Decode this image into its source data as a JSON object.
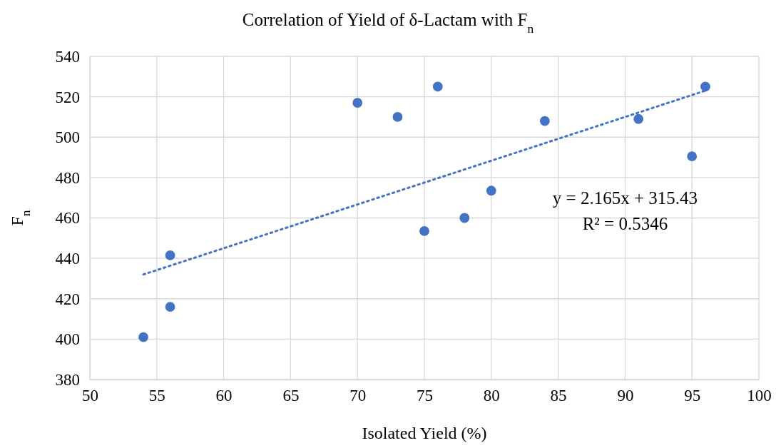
{
  "chart_data": {
    "type": "scatter",
    "title": "Correlation of Yield of δ-Lactam with F$_{n}$",
    "xlabel": "Isolated Yield (%)",
    "ylabel": "F$_{n}$",
    "xlim": [
      50,
      100
    ],
    "xticks": [
      50,
      55,
      60,
      65,
      70,
      75,
      80,
      85,
      90,
      95,
      100
    ],
    "ylim": [
      380,
      540
    ],
    "yticks": [
      380,
      400,
      420,
      440,
      460,
      480,
      500,
      520,
      540
    ],
    "grid": true,
    "series": [
      {
        "color": "#4472c4",
        "marker": "circle",
        "x": [
          54,
          56,
          56,
          70,
          73,
          76,
          75,
          78,
          80,
          84,
          91,
          95,
          96
        ],
        "values": [
          401,
          416,
          441.5,
          517,
          510,
          525,
          453.5,
          460,
          473.5,
          508,
          509,
          490.5,
          525
        ]
      },
      {
        "type": "line",
        "color": "#4472c4",
        "line_style": "dotted",
        "marker": "none",
        "x": [
          54,
          96
        ],
        "values": [
          432,
          523
        ]
      }
    ],
    "annotations": [
      "y = 2.165x + 315.43",
      "R² = 0.5346"
    ]
  }
}
